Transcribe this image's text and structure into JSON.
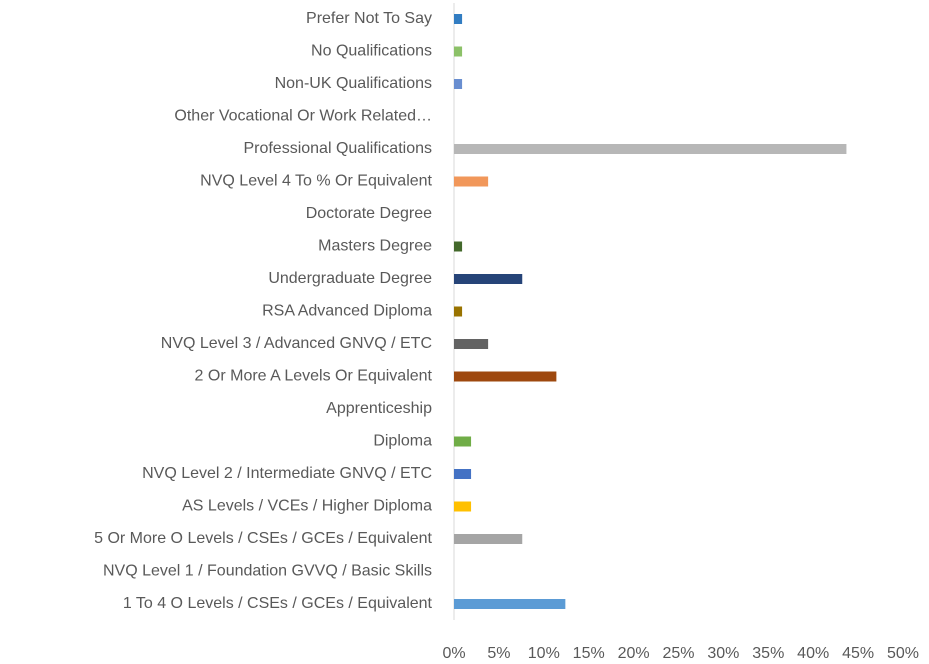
{
  "chart_data": {
    "type": "bar",
    "orientation": "horizontal",
    "categories": [
      "1 To 4 O Levels / CSEs / GCEs / Equivalent",
      "NVQ Level 1 / Foundation GVVQ / Basic Skills",
      "5 Or More O Levels / CSEs / GCEs / Equivalent",
      "AS Levels / VCEs / Higher Diploma",
      "NVQ Level 2 / Intermediate GNVQ / ETC",
      "Diploma",
      "Apprenticeship",
      "2 Or More A Levels Or Equivalent",
      "NVQ Level 3 / Advanced GNVQ / ETC",
      "RSA Advanced Diploma",
      "Undergraduate Degree",
      "Masters Degree",
      "Doctorate Degree",
      "NVQ Level 4 To % Or Equivalent",
      "Professional Qualifications",
      "Other Vocational Or Work Related…",
      "Non-UK Qualifications",
      "No Qualifications",
      "Prefer Not To Say"
    ],
    "values": [
      12.4,
      0,
      7.6,
      1.9,
      1.9,
      1.9,
      0,
      11.4,
      3.8,
      0.9,
      7.6,
      0.9,
      0,
      3.8,
      43.7,
      0,
      0.9,
      0.9,
      0.9
    ],
    "colors": [
      "#5b9bd5",
      "#ed7d31",
      "#a5a5a5",
      "#ffc000",
      "#4472c4",
      "#70ad47",
      "#255e91",
      "#9e480e",
      "#636363",
      "#997300",
      "#264478",
      "#43682b",
      "#7cafdd",
      "#f1975a",
      "#b7b7b7",
      "#ffcd33",
      "#698ed0",
      "#8cc168",
      "#327dc2"
    ],
    "xlim": [
      0,
      50
    ],
    "xticks": [
      {
        "value": 0,
        "label": "0%"
      },
      {
        "value": 5,
        "label": "5%"
      },
      {
        "value": 10,
        "label": "10%"
      },
      {
        "value": 15,
        "label": "15%"
      },
      {
        "value": 20,
        "label": "20%"
      },
      {
        "value": 25,
        "label": "25%"
      },
      {
        "value": 30,
        "label": "30%"
      },
      {
        "value": 35,
        "label": "35%"
      },
      {
        "value": 40,
        "label": "40%"
      },
      {
        "value": 45,
        "label": "45%"
      },
      {
        "value": 50,
        "label": "50%"
      }
    ],
    "grid": false
  }
}
